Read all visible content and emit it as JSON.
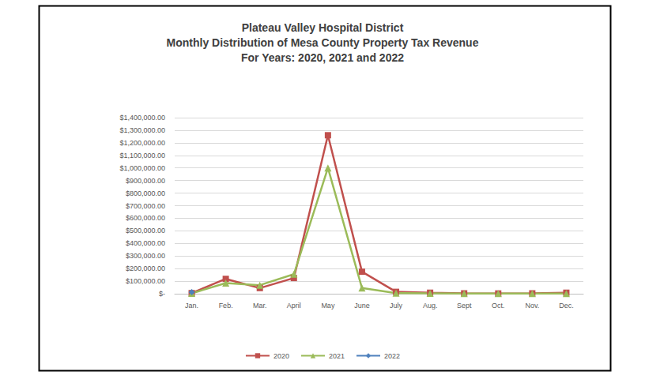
{
  "chart_data": {
    "type": "line",
    "title": "Plateau Valley Hospital District\nMonthly Distribution of Mesa County Property Tax Revenue\nFor Years: 2020, 2021 and 2022",
    "categories": [
      "Jan.",
      "Feb.",
      "Mar.",
      "April",
      "May",
      "June",
      "July",
      "Aug.",
      "Sept",
      "Oct.",
      "Nov.",
      "Dec."
    ],
    "series": [
      {
        "name": "2020",
        "color": "#C0504D",
        "marker": "square",
        "line_style": "solid",
        "values": [
          5000,
          118000,
          45000,
          125000,
          1260000,
          175000,
          15000,
          8000,
          3000,
          2000,
          3000,
          8000
        ]
      },
      {
        "name": "2021",
        "color": "#9BBB59",
        "marker": "triangle",
        "line_style": "solid",
        "values": [
          3000,
          85000,
          68000,
          155000,
          1000000,
          45000,
          5000,
          3000,
          1000,
          1000,
          1000,
          1000
        ]
      },
      {
        "name": "2022",
        "color": "#4F81BD",
        "marker": "diamond",
        "line_style": "solid",
        "values": [
          12000,
          null,
          null,
          null,
          null,
          null,
          null,
          null,
          null,
          null,
          null,
          null
        ]
      }
    ],
    "ylim": [
      0,
      1400000
    ],
    "yticks": [
      {
        "value": 0,
        "label": "$-"
      },
      {
        "value": 100000,
        "label": "$100,000.00"
      },
      {
        "value": 200000,
        "label": "$200,000.00"
      },
      {
        "value": 300000,
        "label": "$300,000.00"
      },
      {
        "value": 400000,
        "label": "$400,000.00"
      },
      {
        "value": 500000,
        "label": "$500,000.00"
      },
      {
        "value": 600000,
        "label": "$600,000.00"
      },
      {
        "value": 700000,
        "label": "$700,000.00"
      },
      {
        "value": 800000,
        "label": "$800,000.00"
      },
      {
        "value": 900000,
        "label": "$900,000.00"
      },
      {
        "value": 1000000,
        "label": "$1,000,000.00"
      },
      {
        "value": 1100000,
        "label": "$1,100,000.00"
      },
      {
        "value": 1200000,
        "label": "$1,200,000.00"
      },
      {
        "value": 1300000,
        "label": "$1,300,000.00"
      },
      {
        "value": 1400000,
        "label": "$1,400,000.00"
      }
    ],
    "grid": true,
    "legend": "bottom"
  }
}
